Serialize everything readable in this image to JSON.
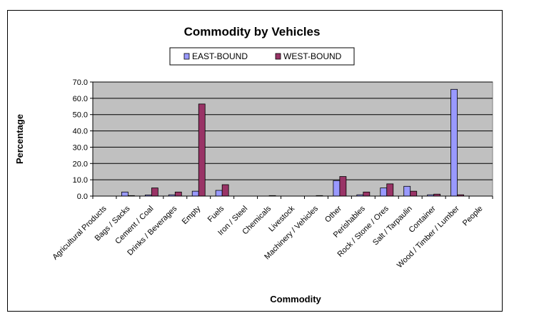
{
  "chart_data": {
    "type": "bar",
    "title": "Commodity by Vehicles",
    "xlabel": "Commodity",
    "ylabel": "Percentage",
    "ylim": [
      0,
      70
    ],
    "yticks": [
      0,
      10,
      20,
      30,
      40,
      50,
      60,
      70
    ],
    "y_tick_format": "one-decimal",
    "grid": true,
    "legend_position": "top",
    "plot_background": "#c0c0c0",
    "categories": [
      "Agricultural Products",
      "Bags / Sacks",
      "Cement / Coal",
      "Drinks / Beverages",
      "Empty",
      "Fuels",
      "Iron / Steel",
      "Chemicals",
      "Livestock",
      "Machinery / Vehicles",
      "Other",
      "Perishables",
      "Rock / Stone / Ores",
      "Salt / Tarpaulin",
      "Container",
      "Wood / Timber / Lumber",
      "People"
    ],
    "series": [
      {
        "name": "EAST-BOUND",
        "color": "#9999ff",
        "values": [
          0,
          2.5,
          0.7,
          0.8,
          3.0,
          3.5,
          0,
          0,
          0,
          0,
          9.5,
          0.8,
          5.0,
          6.0,
          0.8,
          65.5,
          0
        ]
      },
      {
        "name": "WEST-BOUND",
        "color": "#993366",
        "values": [
          0,
          0.3,
          5.0,
          2.5,
          56.5,
          7.0,
          0,
          0.3,
          0,
          0.3,
          12.0,
          2.5,
          7.5,
          3.0,
          1.2,
          0.8,
          0
        ]
      }
    ]
  }
}
